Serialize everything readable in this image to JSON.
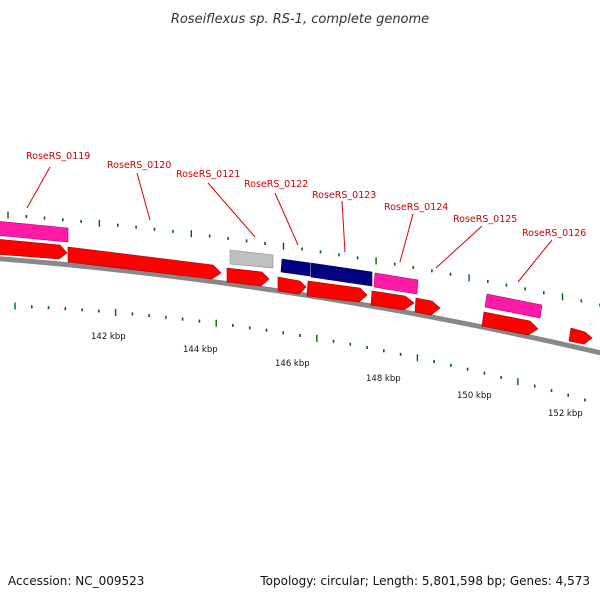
{
  "title": "Roseiflexus sp. RS-1, complete genome",
  "footer": {
    "accession": "Accession: NC_009523",
    "summary": "Topology: circular; Length: 5,801,598 bp; Genes: 4,573"
  },
  "colors": {
    "cds_red": "#ff0000",
    "gene_pink": "#ff1aa8",
    "gene_gray": "#bfbfbf",
    "gene_navy": "#000080",
    "backbone": "#888888",
    "tick_green": "#006400",
    "label_red": "#cc0000"
  },
  "genes": [
    {
      "locus": "RoseRS_0119"
    },
    {
      "locus": "RoseRS_0120"
    },
    {
      "locus": "RoseRS_0121"
    },
    {
      "locus": "RoseRS_0122"
    },
    {
      "locus": "RoseRS_0123"
    },
    {
      "locus": "RoseRS_0124"
    },
    {
      "locus": "RoseRS_0125"
    },
    {
      "locus": "RoseRS_0126"
    }
  ],
  "scale_labels": [
    "142 kbp",
    "144 kbp",
    "146 kbp",
    "148 kbp",
    "150 kbp",
    "152 kbp"
  ]
}
